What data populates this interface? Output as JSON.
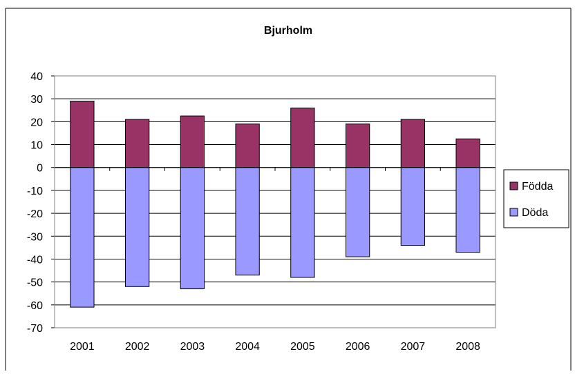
{
  "chart_data": {
    "type": "bar",
    "stacked": true,
    "title": "Bjurholm",
    "xlabel": "",
    "ylabel": "",
    "categories": [
      "2001",
      "2002",
      "2003",
      "2004",
      "2005",
      "2006",
      "2007",
      "2008"
    ],
    "series": [
      {
        "name": "Födda",
        "color": "#993366",
        "values": [
          29,
          21,
          22.5,
          19,
          26,
          19,
          21,
          12.5
        ]
      },
      {
        "name": "Döda",
        "color": "#9999ff",
        "values": [
          -61,
          -52,
          -53,
          -47,
          -48,
          -39,
          -34,
          -37
        ]
      }
    ],
    "ylim": [
      -70,
      40
    ],
    "yticks": [
      "40",
      "30",
      "20",
      "10",
      "0",
      "-10",
      "-20",
      "-30",
      "-40",
      "-50",
      "-60",
      "-70"
    ],
    "grid": true,
    "legend": "right"
  }
}
